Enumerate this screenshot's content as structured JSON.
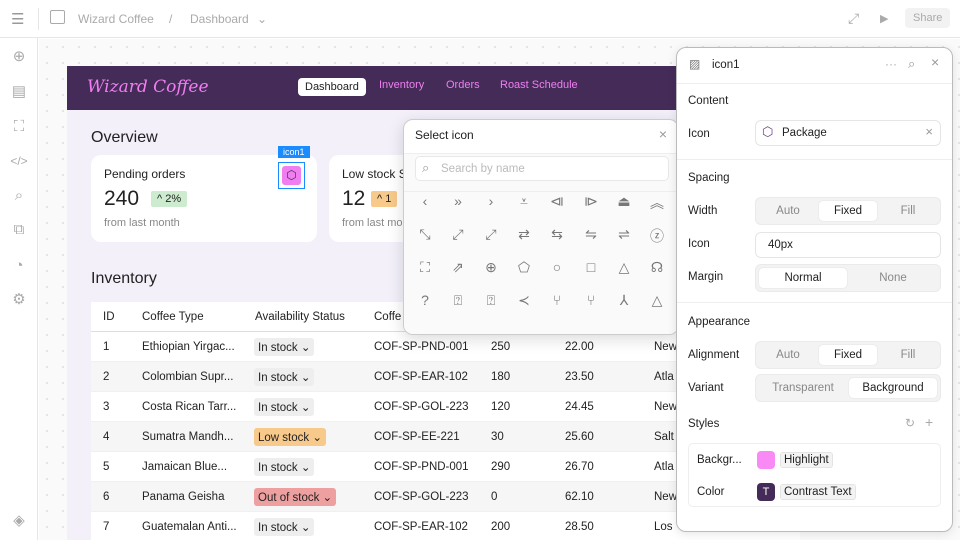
{
  "topbar": {
    "project": "Wizard Coffee",
    "sep": "/",
    "page": "Dashboard",
    "share": "Share"
  },
  "app": {
    "logo": "Wizard Coffee",
    "nav": [
      "Dashboard",
      "Inventory",
      "Orders",
      "Roast Schedule"
    ],
    "overview": "Overview",
    "cards": [
      {
        "label": "Pending orders",
        "value": "240",
        "badge": "^ 2%",
        "sub": "from last month"
      },
      {
        "label": "Low stock S",
        "value": "12",
        "badge": "^ 1",
        "sub": "from last mo"
      }
    ],
    "selection_label": "icon1",
    "inventory": "Inventory",
    "columns": [
      "ID",
      "Coffee Type",
      "Availability Status",
      "Coffe"
    ],
    "rows": [
      [
        "1",
        "Ethiopian Yirgac...",
        "In stock",
        "COF-SP-PND-001",
        "250",
        "22.00",
        "New"
      ],
      [
        "2",
        "Colombian Supr...",
        "In stock",
        "COF-SP-EAR-102",
        "180",
        "23.50",
        "Atla"
      ],
      [
        "3",
        "Costa Rican Tarr...",
        "In stock",
        "COF-SP-GOL-223",
        "120",
        "24.45",
        "New"
      ],
      [
        "4",
        "Sumatra Mandh...",
        "Low stock",
        "COF-SP-EE-221",
        "30",
        "25.60",
        "Salt"
      ],
      [
        "5",
        "Jamaican Blue...",
        "In stock",
        "COF-SP-PND-001",
        "290",
        "26.70",
        "Atla"
      ],
      [
        "6",
        "Panama Geisha",
        "Out of stock",
        "COF-SP-GOL-223",
        "0",
        "62.10",
        "New"
      ],
      [
        "7",
        "Guatemalan Anti...",
        "In stock",
        "COF-SP-EAR-102",
        "200",
        "28.50",
        "Los"
      ]
    ]
  },
  "colors": {
    "header": "#452c58",
    "accent": "#f07ef0",
    "in_stock": "#eeeeee",
    "low_stock": "#f7c98a",
    "out_of_stock": "#eea0a0",
    "selection": "#1a8cff"
  },
  "popup": {
    "title": "Select icon",
    "placeholder": "Search by name",
    "icons": [
      "‹",
      "»",
      "›",
      "⩡",
      "⧏",
      "⧐",
      "⏏",
      "︽",
      "⤡",
      "⤢",
      "⤢",
      "⇄",
      "⇆",
      "⇋",
      "⇌",
      "ⓩ",
      "⛶",
      "⇗",
      "⊕",
      "⬠",
      "○",
      "□",
      "△",
      "☊",
      "?",
      "⍰",
      "⍰",
      "≺",
      "⑂",
      "⑂",
      "⅄",
      "△"
    ]
  },
  "panel": {
    "title": "icon1",
    "content": "Content",
    "icon_label": "Icon",
    "icon_value": "Package",
    "spacing": "Spacing",
    "width_label": "Width",
    "width_opts": [
      "Auto",
      "Fixed",
      "Fill"
    ],
    "iconsize_label": "Icon",
    "iconsize_value": "40px",
    "margin_label": "Margin",
    "margin_opts": [
      "Normal",
      "None"
    ],
    "appearance": "Appearance",
    "align_label": "Alignment",
    "align_opts": [
      "Auto",
      "Fixed",
      "Fill"
    ],
    "variant_label": "Variant",
    "variant_opts": [
      "Transparent",
      "Background"
    ],
    "styles": "Styles",
    "bg_label": "Backgr...",
    "bg_value": "Highlight",
    "color_label": "Color",
    "color_value": "Contrast Text",
    "color_glyph": "T"
  }
}
